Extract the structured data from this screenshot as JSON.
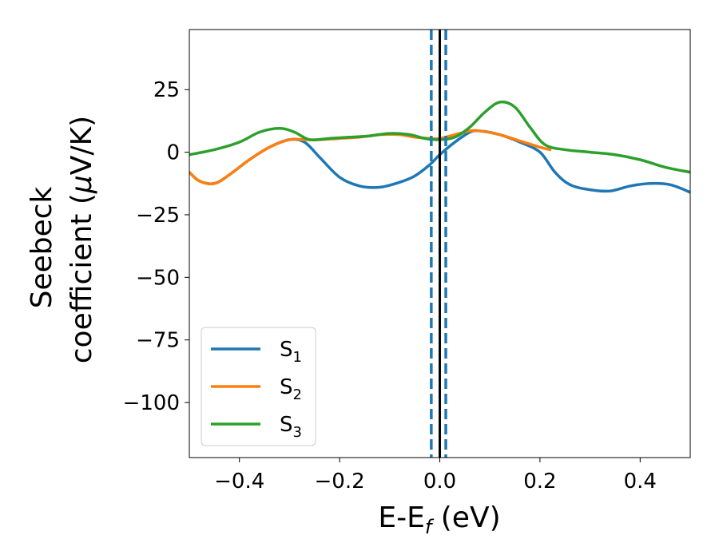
{
  "chart_data": {
    "type": "line",
    "xlabel": "E-E",
    "xlabel_sub": "f",
    "xlabel_unit": " (eV)",
    "ylabel_line1": "Seebeck",
    "ylabel_line2_text": "coefficient  (",
    "ylabel_line2_mu": "μ",
    "ylabel_line2_unit": "V/K)",
    "xlim": [
      -0.5,
      0.5
    ],
    "ylim": [
      -122,
      49
    ],
    "xticks": [
      -0.4,
      -0.2,
      0.0,
      0.2,
      0.4
    ],
    "xtick_labels": [
      "−0.4",
      "−0.2",
      "0.0",
      "0.2",
      "0.4"
    ],
    "yticks": [
      25,
      0,
      -25,
      -50,
      -75,
      -100
    ],
    "ytick_labels": [
      "25",
      "0",
      "−25",
      "−50",
      "−75",
      "−100"
    ],
    "grid": false,
    "legend_position": "lower-left",
    "vlines": [
      {
        "x": 0.0,
        "style": "solid",
        "color": "#000000"
      },
      {
        "x": -0.017,
        "style": "dashed",
        "color": "#1f77b4"
      },
      {
        "x": 0.012,
        "style": "dashed",
        "color": "#1f77b4"
      }
    ],
    "series": [
      {
        "name": "S",
        "sub": "1",
        "color": "#1f77b4",
        "x": [
          -0.5,
          -0.48,
          -0.45,
          -0.42,
          -0.38,
          -0.34,
          -0.3,
          -0.27,
          -0.24,
          -0.2,
          -0.16,
          -0.12,
          -0.08,
          -0.05,
          -0.02,
          0.0,
          0.03,
          0.06,
          0.08,
          0.12,
          0.16,
          0.2,
          0.23,
          0.26,
          0.3,
          0.34,
          0.38,
          0.42,
          0.46,
          0.5
        ],
        "y": [
          -8,
          -11.5,
          -12.5,
          -9,
          -3,
          2,
          5,
          4,
          -2,
          -10,
          -13.5,
          -14,
          -12,
          -9.5,
          -5,
          -1,
          4,
          8,
          8.5,
          7,
          4,
          0,
          -8,
          -13,
          -15,
          -15.5,
          -13.5,
          -12.5,
          -13,
          -16
        ]
      },
      {
        "name": "S",
        "sub": "2",
        "color": "#ff7f0e",
        "x": [
          -0.5,
          -0.48,
          -0.45,
          -0.42,
          -0.38,
          -0.34,
          -0.3,
          -0.27,
          -0.24,
          -0.2,
          -0.16,
          -0.12,
          -0.08,
          -0.05,
          -0.02,
          0.0,
          0.03,
          0.06,
          0.08,
          0.12,
          0.16,
          0.2,
          0.22
        ],
        "y": [
          -8,
          -11.5,
          -12.5,
          -9,
          -3,
          2,
          5,
          5,
          5,
          5.5,
          6,
          7,
          7,
          6,
          5.5,
          5.5,
          7,
          8.5,
          8.5,
          7,
          4.5,
          2,
          1
        ]
      },
      {
        "name": "S",
        "sub": "3",
        "color": "#2ca02c",
        "x": [
          -0.5,
          -0.45,
          -0.4,
          -0.36,
          -0.32,
          -0.29,
          -0.26,
          -0.22,
          -0.18,
          -0.14,
          -0.1,
          -0.06,
          -0.03,
          0.0,
          0.03,
          0.06,
          0.09,
          0.12,
          0.15,
          0.18,
          0.21,
          0.25,
          0.3,
          0.35,
          0.4,
          0.45,
          0.5
        ],
        "y": [
          -1,
          1,
          4,
          8,
          9.5,
          8,
          5,
          5.5,
          6,
          6.5,
          7.5,
          7,
          5.5,
          5,
          6,
          10,
          16,
          20,
          18,
          10,
          3,
          1,
          0,
          -1,
          -3,
          -6,
          -8
        ]
      }
    ]
  }
}
